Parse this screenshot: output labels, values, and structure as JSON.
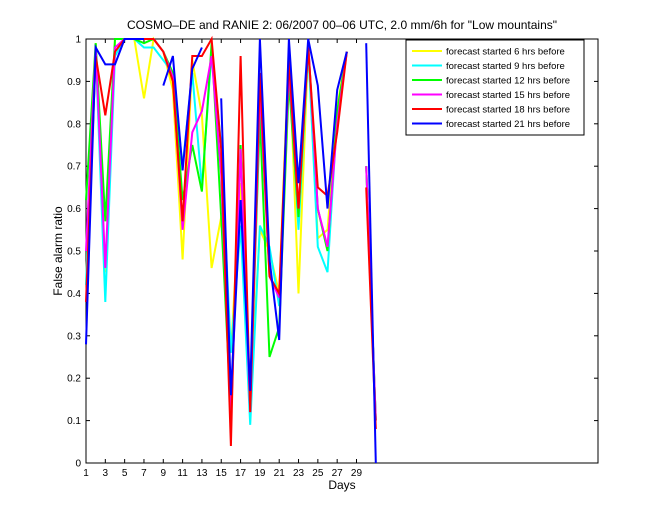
{
  "chart_data": {
    "type": "line",
    "title": "COSMO–DE and RANIE 2: 06/2007 00–06 UTC, 2.0 mm/6h for \"Low mountains\"",
    "xlabel": "Days",
    "ylabel": "False alarm ratio",
    "xlim": [
      1,
      54
    ],
    "ylim": [
      0,
      1
    ],
    "xticks": [
      1,
      3,
      5,
      7,
      9,
      11,
      13,
      15,
      17,
      19,
      21,
      23,
      25,
      27,
      29
    ],
    "xtick_labels": [
      "1",
      "3",
      "5",
      "7",
      "9",
      "11",
      "13",
      "15",
      "17",
      "19",
      "21",
      "23",
      "25",
      "27",
      "29"
    ],
    "yticks": [
      0,
      0.1,
      0.2,
      0.3,
      0.4,
      0.5,
      0.6,
      0.7,
      0.8,
      0.9,
      1
    ],
    "ytick_labels": [
      "0",
      "0.1",
      "0.2",
      "0.3",
      "0.4",
      "0.5",
      "0.6",
      "0.7",
      "0.8",
      "0.9",
      "1"
    ],
    "legend_position": "top-right",
    "x": [
      1,
      2,
      3,
      4,
      5,
      6,
      7,
      8,
      9,
      10,
      11,
      12,
      13,
      14,
      15,
      16,
      17,
      18,
      19,
      20,
      21,
      22,
      23,
      24,
      25,
      26,
      27,
      28,
      29,
      30,
      31
    ],
    "series": [
      {
        "name": "forecast started 6 hrs before",
        "color": "#ffff00",
        "values": [
          0.42,
          0.99,
          0.45,
          1.0,
          1.0,
          1.0,
          0.86,
          1.0,
          0.97,
          0.88,
          0.48,
          0.95,
          0.82,
          0.46,
          0.58,
          0.26,
          0.66,
          0.15,
          0.55,
          0.5,
          0.4,
          0.98,
          0.4,
          0.98,
          0.53,
          0.55,
          0.84,
          0.97,
          null,
          0.7,
          0.1
        ]
      },
      {
        "name": "forecast started 9 hrs before",
        "color": "#00ffff",
        "values": [
          0.42,
          0.97,
          0.38,
          0.96,
          1.0,
          1.0,
          0.98,
          0.98,
          0.95,
          0.92,
          0.7,
          0.92,
          0.65,
          0.97,
          0.75,
          0.26,
          0.56,
          0.09,
          0.56,
          0.51,
          0.37,
          0.95,
          0.55,
          0.98,
          0.51,
          0.45,
          0.82,
          0.97,
          null,
          0.7,
          0.1
        ]
      },
      {
        "name": "forecast started 12 hrs before",
        "color": "#00ff00",
        "values": [
          0.62,
          0.99,
          0.57,
          1.0,
          1.0,
          1.0,
          0.99,
          1.0,
          0.97,
          0.92,
          0.62,
          0.75,
          0.64,
          0.99,
          0.58,
          0.12,
          0.75,
          0.14,
          0.82,
          0.25,
          0.32,
          0.9,
          0.58,
          0.99,
          0.6,
          0.5,
          0.83,
          0.97,
          null,
          0.7,
          0.1
        ]
      },
      {
        "name": "forecast started 15 hrs before",
        "color": "#ff00ff",
        "values": [
          0.5,
          0.98,
          0.46,
          0.98,
          1.0,
          1.0,
          1.0,
          1.0,
          0.97,
          0.91,
          0.55,
          0.78,
          0.83,
          0.96,
          0.68,
          0.1,
          0.74,
          0.12,
          0.88,
          0.44,
          0.39,
          0.93,
          0.6,
          0.99,
          0.6,
          0.51,
          0.8,
          0.97,
          null,
          0.7,
          0.1
        ]
      },
      {
        "name": "forecast started 18 hrs before",
        "color": "#ff0000",
        "values": [
          0.38,
          0.96,
          0.82,
          0.97,
          1.0,
          1.0,
          1.0,
          1.0,
          0.97,
          0.9,
          0.57,
          0.96,
          0.96,
          1.0,
          0.74,
          0.04,
          0.96,
          0.12,
          0.92,
          0.44,
          0.4,
          0.95,
          0.6,
          0.98,
          0.65,
          0.63,
          0.78,
          0.97,
          null,
          0.65,
          0.08
        ]
      },
      {
        "name": "forecast started 21 hrs before",
        "color": "#0000ff",
        "values": [
          0.28,
          0.98,
          0.94,
          0.94,
          1.0,
          1.0,
          1.0,
          null,
          0.89,
          0.96,
          0.69,
          0.93,
          0.98,
          null,
          0.86,
          0.16,
          0.62,
          0.17,
          1.0,
          0.48,
          0.29,
          1.0,
          0.66,
          1.0,
          0.89,
          0.6,
          0.88,
          0.97,
          null,
          0.99,
          0.0
        ]
      }
    ]
  }
}
